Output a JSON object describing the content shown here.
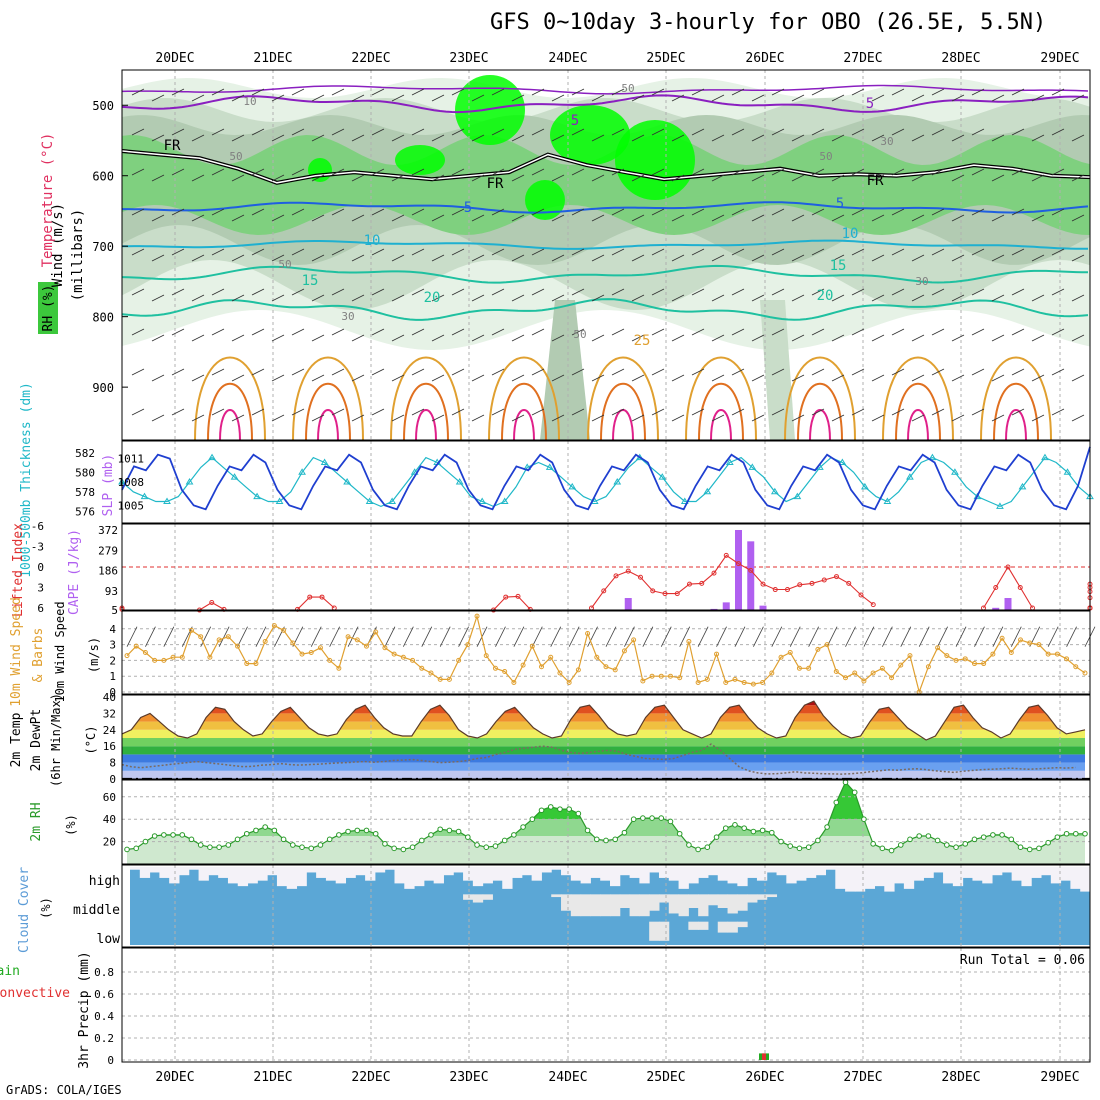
{
  "title": "GFS 0~10day 3-hourly for OBO (26.5E, 5.5N)",
  "credit": "GrADS: COLA/IGES",
  "x_axis": {
    "labels": [
      "20DEC",
      "21DEC",
      "22DEC",
      "23DEC",
      "24DEC",
      "25DEC",
      "26DEC",
      "27DEC",
      "28DEC",
      "29DEC"
    ]
  },
  "panel_labels": {
    "upper_air_wind": "Wind (m/s)",
    "upper_air_temp": "Temperature (°C)",
    "upper_air_rh": "RH (%)",
    "upper_air_units": "(millibars)",
    "thickness": "1000-500mb Thickness (dm)",
    "slp": "SLP (mb)",
    "lifted_index": "Lifted Index",
    "cape": "CAPE (J/kg)",
    "wind10": "10m Wind Speed",
    "wind10_barbs": "& Barbs",
    "wind10_units": "(m/s)",
    "temp2m": "2m Temp",
    "dewpt2m": "2m DewPt",
    "temp_minmax": "(6hr Min/Max)",
    "temp_units": "(°C)",
    "rh2m": "2m RH",
    "rh_units": "(%)",
    "cloud_cover": "Cloud Cover",
    "cloud_units": "(%)",
    "cloud_high": "high",
    "cloud_middle": "middle",
    "cloud_low": "low",
    "precip_total": "Total / Rain",
    "precip_convective": "Convective",
    "precip": "3hr Precip (mm)",
    "run_total": "Run Total = 0.06"
  },
  "colors": {
    "slp": "#1f3fd0",
    "thickness": "#20b8c8",
    "lifted_index": "#e03030",
    "cape": "#b060f0",
    "wind10": "#e0a030",
    "rh2m": "#2a9a2a",
    "cloud": "#5ba7d6",
    "rh_green": "#00ff00",
    "purple_contour": "#8a1fc0",
    "blue_contour": "#1f5fe0",
    "cyan_contour": "#1fb0d0",
    "teal_contour": "#1fc0a0",
    "orange_contour": "#e0a030",
    "magenta_contour": "#e0208a"
  },
  "chart_data": [
    {
      "type": "heatmap",
      "name": "upper-air cross section",
      "ylabel": "(millibars)",
      "y_ticks": [
        500,
        600,
        700,
        800,
        900
      ],
      "ylim": [
        450,
        975
      ],
      "contour_labels": [
        "FR",
        "5",
        "5",
        "10",
        "15",
        "20",
        "25",
        "-5",
        "-5",
        "50",
        "50",
        "30"
      ],
      "freezing_level_mb": [
        565,
        570,
        575,
        590,
        610,
        600,
        595,
        600,
        605,
        600,
        595,
        570,
        585,
        595,
        605,
        600,
        595,
        590,
        600,
        598,
        600,
        595,
        585,
        590,
        600,
        602
      ]
    },
    {
      "type": "line",
      "name": "SLP and thickness",
      "slp_ylabel": "SLP (mb)",
      "slp_ticks": [
        1005,
        1008,
        1011
      ],
      "slp_ylim": [
        1003,
        1013
      ],
      "thickness_ylabel": "1000-500mb Thickness (dm)",
      "thickness_ticks": [
        576,
        578,
        580,
        582
      ],
      "thickness_ylim": [
        575,
        583
      ],
      "series": [
        {
          "name": "SLP (mb)",
          "values": [
            1007,
            1010,
            1009.5,
            1011.5,
            1011,
            1007,
            1005,
            1004.5,
            1007.5,
            1010,
            1009.5,
            1011.5,
            1010.5,
            1007,
            1005,
            1004.5,
            1007.5,
            1010,
            1009.5,
            1011.5,
            1010.5,
            1007,
            1005,
            1004.5,
            1007.5,
            1010,
            1009.5,
            1011.5,
            1010.5,
            1007,
            1005,
            1004.5,
            1007.5,
            1010,
            1009.5,
            1011.5,
            1010.5,
            1007,
            1005,
            1004.5,
            1007.5,
            1010,
            1009.5,
            1011.5,
            1010.5,
            1007,
            1005,
            1004.5,
            1007.5,
            1010,
            1009.5,
            1011.5,
            1010.5,
            1007,
            1005,
            1004.5,
            1007.5,
            1010,
            1009.5,
            1011.5,
            1010.5,
            1007,
            1005,
            1004.5,
            1007.5,
            1010,
            1009.5,
            1011.5,
            1010.5,
            1007,
            1005,
            1004.5,
            1007.5,
            1010,
            1009.5,
            1011.5,
            1010.5,
            1007,
            1005,
            1004.5,
            1007.5,
            1012.5
          ]
        },
        {
          "name": "Thickness (dm)",
          "values": [
            579,
            578,
            577.5,
            577,
            577,
            577.5,
            579,
            580.5,
            581.5,
            580.5,
            579.5,
            578.5,
            577.5,
            577,
            577,
            578,
            580,
            581.5,
            581,
            580,
            579,
            578,
            577,
            576.5,
            577,
            578.5,
            580,
            581.5,
            581,
            580,
            579,
            577.5,
            577,
            576.5,
            577,
            578.5,
            580.5,
            581,
            580.5,
            579.5,
            578.5,
            577.5,
            577,
            577.5,
            579,
            580.5,
            581.5,
            580.5,
            579.5,
            578,
            577,
            577,
            578,
            579.5,
            581,
            581.5,
            580.5,
            579.5,
            578,
            577,
            577.5,
            579,
            580.5,
            581.5,
            581,
            580,
            578.5,
            577.5,
            577,
            578,
            579.5,
            581,
            581.5,
            581,
            580,
            578.5,
            577.5,
            577,
            576.5,
            577,
            578.5,
            580,
            581.5,
            581,
            580,
            578.5,
            577.5
          ]
        }
      ]
    },
    {
      "type": "bar",
      "name": "Lifted index and CAPE",
      "li_ylabel": "Lifted Index",
      "li_ticks": [
        -6,
        -3,
        0,
        3,
        6
      ],
      "li_ylim": [
        6,
        -6
      ],
      "cape_ylabel": "CAPE (J/kg)",
      "cape_ticks": [
        5,
        93,
        186,
        279,
        372
      ],
      "cape_ylim": [
        5,
        372
      ],
      "lifted_index_segments": [
        {
          "start": 0,
          "values": [
            6,
            6.2
          ]
        },
        {
          "start": 8,
          "values": [
            6.3,
            5.2,
            6.2
          ]
        },
        {
          "start": 16,
          "values": [
            6.2,
            4.4,
            4.4,
            6
          ]
        },
        {
          "start": 32,
          "values": [
            6.3,
            4.4,
            4.3,
            6.2
          ]
        },
        {
          "start": 40,
          "values": [
            6,
            3.5,
            1.3,
            0.6,
            1.5,
            3.5,
            3.9,
            3.9,
            2.5,
            2.4,
            0.9,
            -1.7,
            -0.5,
            0.5,
            2.5,
            3.3,
            3.3,
            2.6,
            2.4,
            1.9,
            1.4,
            2.4,
            4.1,
            5.5
          ]
        },
        {
          "start": 72,
          "values": [
            6,
            3,
            0,
            3,
            6
          ]
        },
        {
          "start": 97,
          "values": [
            6,
            4.5,
            3.6,
            6
          ]
        },
        {
          "start": 104,
          "values": [
            6,
            3,
            2.5,
            6
          ]
        }
      ],
      "cape_bars": [
        {
          "index": 43,
          "value": 60
        },
        {
          "index": 50,
          "value": 10
        },
        {
          "index": 51,
          "value": 40
        },
        {
          "index": 52,
          "value": 372
        },
        {
          "index": 53,
          "value": 320
        },
        {
          "index": 54,
          "value": 25
        },
        {
          "index": 73,
          "value": 15
        },
        {
          "index": 74,
          "value": 60
        }
      ]
    },
    {
      "type": "line",
      "name": "10m wind speed",
      "ylabel": "(m/s)",
      "yticks": [
        0,
        1,
        2,
        3,
        4
      ],
      "ylim": [
        0,
        5
      ],
      "values": [
        2.3,
        2.9,
        2.5,
        2,
        2,
        2.2,
        2.2,
        3.9,
        3.5,
        2.2,
        3.3,
        3.5,
        2.9,
        1.8,
        1.8,
        3.2,
        4.2,
        3.9,
        3.1,
        2.4,
        2.5,
        2.8,
        2,
        1.5,
        3.5,
        3.3,
        2.9,
        3.8,
        2.8,
        2.4,
        2.2,
        2,
        1.5,
        1.2,
        0.8,
        0.8,
        2,
        3,
        4.8,
        2.3,
        1.5,
        1.3,
        0.6,
        1.7,
        2.9,
        1.6,
        2.2,
        1.2,
        0.6,
        1.4,
        3.7,
        2.2,
        1.6,
        1.4,
        2.6,
        3.3,
        0.7,
        1,
        1,
        1,
        0.9,
        3.2,
        0.6,
        0.8,
        2.4,
        0.6,
        0.8,
        0.6,
        0.5,
        0.6,
        1.2,
        2.2,
        2.5,
        1.5,
        1.5,
        2.7,
        3,
        1.3,
        0.9,
        1.2,
        0.7,
        1.2,
        1.5,
        0.9,
        1.7,
        2.3,
        0,
        1.6,
        2.8,
        2.3,
        2,
        2.1,
        1.8,
        1.8,
        2.4,
        3.4,
        2.5,
        3.3,
        3.1,
        3,
        2.4,
        2.4,
        2.1,
        1.6,
        1.2
      ]
    },
    {
      "type": "area",
      "name": "2m temperature and dewpoint",
      "ylabel": "(°C)",
      "yticks": [
        0,
        8,
        16,
        24,
        32,
        40
      ],
      "ylim": [
        0,
        40
      ],
      "temperature": [
        22,
        24,
        30,
        32,
        28,
        24,
        21,
        20,
        22,
        30,
        35,
        34,
        28,
        24,
        21,
        22,
        28,
        33,
        35,
        30,
        25,
        22,
        21,
        22,
        29,
        34,
        36,
        30,
        25,
        22,
        21,
        21,
        28,
        34,
        36,
        31,
        24,
        21,
        20,
        22,
        28,
        33,
        35,
        30,
        25,
        22,
        20,
        21,
        29,
        35,
        36,
        31,
        25,
        22,
        21,
        22,
        30,
        35,
        36,
        30,
        24,
        22,
        20,
        22,
        30,
        35,
        36,
        30,
        25,
        22,
        20,
        21,
        30,
        36,
        38,
        31,
        26,
        22,
        20,
        21,
        28,
        34,
        35,
        30,
        25,
        22,
        19,
        21,
        28,
        35,
        36,
        30,
        25,
        23,
        20,
        22,
        29,
        35,
        36,
        31,
        25,
        22,
        23,
        24
      ],
      "dewpoint": [
        7,
        6,
        5.5,
        6,
        6.5,
        7,
        7.5,
        8,
        8.5,
        8,
        7.5,
        7,
        6.5,
        6,
        6.2,
        6.8,
        7,
        7.5,
        7,
        6.8,
        7,
        7.2,
        7.5,
        7.8,
        8,
        8.3,
        8.5,
        8.2,
        8.5,
        9,
        9.2,
        9.5,
        9,
        8.5,
        8,
        8.2,
        8.5,
        9,
        10,
        10.5,
        12,
        13,
        14.5,
        15,
        15.5,
        16,
        15.5,
        14,
        13,
        12.5,
        13,
        13.5,
        14,
        13.5,
        12,
        11,
        10,
        9.8,
        9.5,
        10,
        11.5,
        13,
        14,
        17,
        14,
        10,
        6,
        4,
        3,
        2.5,
        2.6,
        3,
        3.5,
        3,
        2.8,
        2.6,
        2.5,
        2.4,
        2.6,
        3,
        3.5,
        4,
        4.5,
        4.3,
        4.8,
        5,
        4.6,
        4,
        3.6,
        3.2,
        3.8,
        4.2,
        4.6,
        4.8,
        5,
        5.3,
        5,
        4.8,
        5,
        5.2,
        5.5,
        5.3,
        5.6
      ]
    },
    {
      "type": "area",
      "name": "2m relative humidity",
      "ylabel": "(%)",
      "yticks": [
        20,
        40,
        60
      ],
      "ylim": [
        0,
        75
      ],
      "values": [
        13,
        14,
        20,
        25,
        26,
        26,
        26,
        22,
        17,
        15,
        15,
        17,
        22,
        27,
        30,
        33,
        30,
        22,
        17,
        15,
        14,
        17,
        22,
        26,
        29,
        30,
        30,
        27,
        18,
        14,
        13,
        15,
        21,
        26,
        31,
        30,
        29,
        24,
        17,
        15,
        16,
        21,
        26,
        33,
        40,
        48,
        51,
        49,
        49,
        45,
        30,
        22,
        21,
        22,
        28,
        40,
        41,
        41,
        41,
        38,
        27,
        17,
        13,
        15,
        24,
        32,
        35,
        32,
        29,
        30,
        28,
        20,
        16,
        14,
        15,
        21,
        33,
        55,
        73,
        64,
        40,
        18,
        14,
        12,
        17,
        22,
        25,
        25,
        21,
        17,
        15,
        18,
        22,
        24,
        26,
        26,
        22,
        15,
        13,
        14,
        19,
        24,
        27,
        27,
        27
      ]
    },
    {
      "type": "bar",
      "name": "cloud cover",
      "ylabel": "(%)",
      "rows": [
        "high",
        "middle",
        "low"
      ],
      "high_clear_fraction": [
        0.1,
        0.4,
        0.2,
        0.4,
        0.6,
        0.3,
        0.1,
        0.5,
        0.3,
        0.4,
        0.6,
        0.7,
        0.6,
        0.5,
        0.3,
        0.7,
        0.8,
        0.7,
        0.2,
        0.4,
        0.5,
        0.6,
        0.4,
        0.3,
        0.5,
        0.2,
        0.1,
        0.6,
        0.8,
        0.7,
        0.5,
        0.6,
        0.3,
        0.2,
        0.5,
        0.7,
        0.6,
        0.5,
        0.8,
        0.4,
        0.3,
        0.5,
        0.2,
        0.1,
        0.3,
        0.5,
        0.6,
        0.4,
        0.5,
        0.7,
        0.3,
        0.4,
        0.6,
        0.2,
        0.4,
        0.5,
        0.8,
        0.6,
        0.4,
        0.3,
        0.5,
        0.6,
        0.7,
        0.4,
        0.5,
        0.2,
        0.3,
        0.6,
        0.5,
        0.4,
        0.3,
        0.1,
        0.8,
        0.9,
        0.9,
        0.8,
        0.7,
        0.9,
        0.6,
        0.8,
        0.5,
        0.4,
        0.2,
        0.6,
        0.7,
        0.4,
        0.5,
        0.6,
        0.3,
        0.2,
        0.5,
        0.7,
        0.4,
        0.3,
        0.6,
        0.5,
        0.8,
        0.9
      ],
      "middle_clear_fraction": [
        0,
        0,
        0,
        0,
        0,
        0,
        0,
        0,
        0,
        0,
        0,
        0,
        0,
        0,
        0,
        0,
        0,
        0,
        0,
        0,
        0,
        0,
        0,
        0,
        0,
        0,
        0,
        0,
        0,
        0,
        0,
        0,
        0,
        0,
        0.2,
        0.3,
        0.2,
        0,
        0,
        0,
        0,
        0,
        0,
        0.1,
        0.6,
        0.8,
        0.8,
        0.8,
        0.8,
        0.8,
        0.5,
        0.8,
        0.8,
        0.6,
        0.3,
        0.7,
        0.8,
        0.5,
        0.8,
        0.4,
        0.5,
        0.7,
        0.6,
        0.3,
        0.2,
        0.1,
        0,
        0,
        0,
        0,
        0,
        0,
        0,
        0,
        0,
        0,
        0,
        0,
        0,
        0,
        0,
        0,
        0,
        0,
        0,
        0,
        0,
        0,
        0,
        0,
        0,
        0,
        0,
        0,
        0,
        0,
        0,
        0
      ],
      "low_clear_fraction": [
        0,
        0,
        0,
        0,
        0,
        0,
        0,
        0,
        0,
        0,
        0,
        0,
        0,
        0,
        0,
        0,
        0,
        0,
        0,
        0,
        0,
        0,
        0,
        0,
        0,
        0,
        0,
        0,
        0,
        0,
        0,
        0,
        0,
        0,
        0,
        0,
        0,
        0,
        0,
        0,
        0,
        0,
        0,
        0,
        0,
        0,
        0,
        0,
        0,
        0,
        0,
        0,
        0,
        0.7,
        0.7,
        0,
        0,
        0.3,
        0.3,
        0,
        0.4,
        0.4,
        0.2,
        0,
        0,
        0,
        0,
        0,
        0,
        0,
        0,
        0,
        0,
        0,
        0,
        0,
        0,
        0,
        0,
        0,
        0,
        0,
        0,
        0,
        0,
        0,
        0,
        0,
        0,
        0,
        0,
        0,
        0,
        0,
        0,
        0,
        0,
        0
      ]
    },
    {
      "type": "bar",
      "name": "3hr precipitation",
      "ylabel": "3hr Precip (mm)",
      "yticks": [
        0,
        0.2,
        0.4,
        0.6,
        0.8
      ],
      "ylim": [
        0,
        1.0
      ],
      "run_total": 0.06,
      "bars": [
        {
          "index": 54,
          "value": 0.06
        }
      ]
    }
  ]
}
